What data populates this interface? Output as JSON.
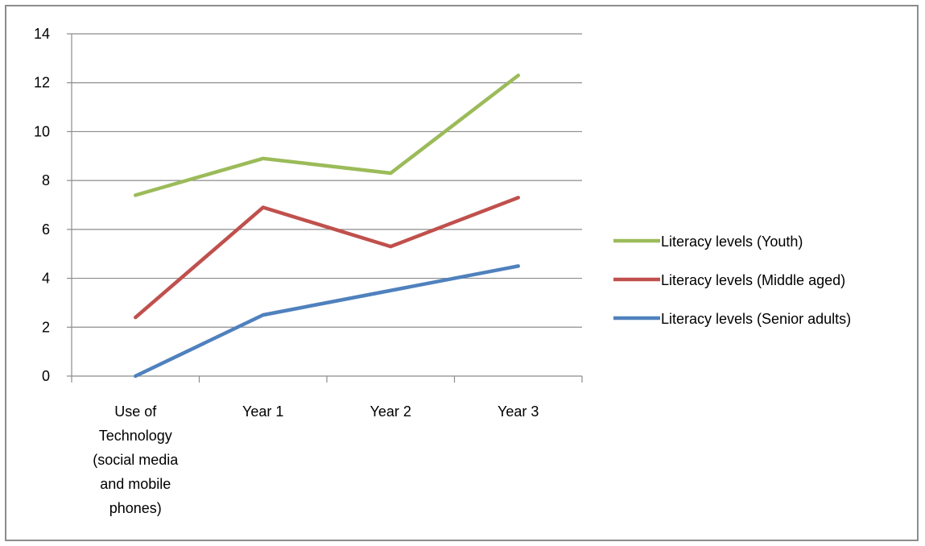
{
  "chart_data": {
    "type": "line",
    "title": "",
    "xlabel": "",
    "ylabel": "",
    "categories": [
      "Use of Technology (social media and mobile phones)",
      "Year 1",
      "Year 2",
      "Year 3"
    ],
    "category_label_lines": [
      [
        "Use of",
        "Technology",
        "(social media",
        "and mobile",
        "phones)"
      ],
      [
        "Year 1"
      ],
      [
        "Year 2"
      ],
      [
        "Year 3"
      ]
    ],
    "ylim": [
      0,
      14
    ],
    "yticks": [
      0,
      2,
      4,
      6,
      8,
      10,
      12,
      14
    ],
    "grid": true,
    "legend_position": "right",
    "series": [
      {
        "name": "Literacy levels (Youth)",
        "color": "#9bbb59",
        "values": [
          7.4,
          8.9,
          8.3,
          12.3
        ]
      },
      {
        "name": "Literacy levels (Middle aged)",
        "color": "#c0504d",
        "values": [
          2.4,
          6.9,
          5.3,
          7.3
        ]
      },
      {
        "name": "Literacy levels (Senior adults)",
        "color": "#4f81bd",
        "values": [
          0,
          2.5,
          3.5,
          4.5
        ]
      }
    ]
  }
}
